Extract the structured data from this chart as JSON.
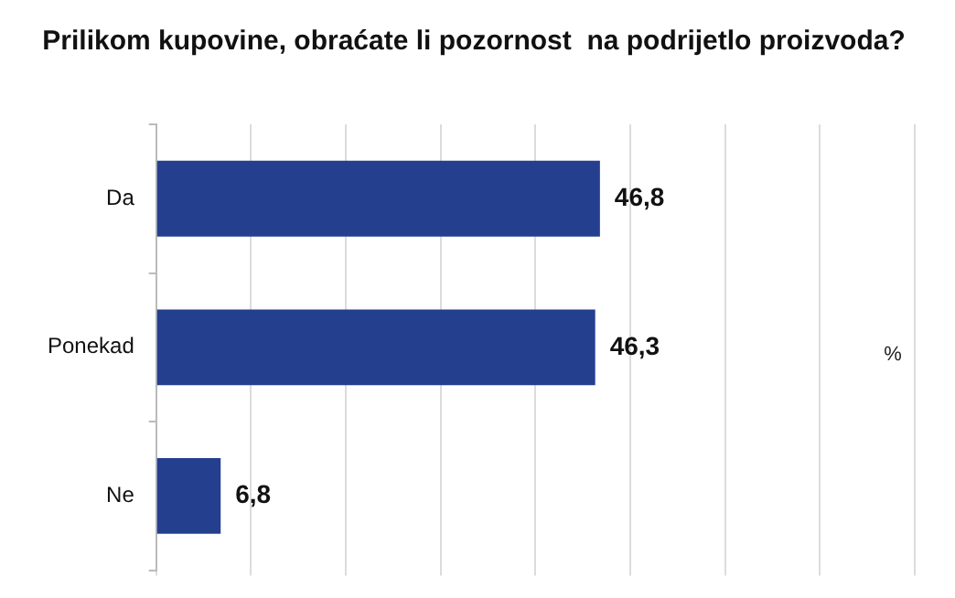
{
  "chart_data": {
    "type": "bar",
    "orientation": "horizontal",
    "title": "Prilikom kupovine, obraćate li pozornost  na podrijetlo proizvoda?",
    "categories": [
      "Da",
      "Ponekad",
      "Ne"
    ],
    "values": [
      46.8,
      46.3,
      6.8
    ],
    "color": "#253f8f",
    "value_labels": [
      "46,8",
      "46,3",
      "6,8"
    ],
    "grid": "x",
    "tick_labels": "y",
    "legend": false,
    "annotations": [
      "%"
    ]
  }
}
